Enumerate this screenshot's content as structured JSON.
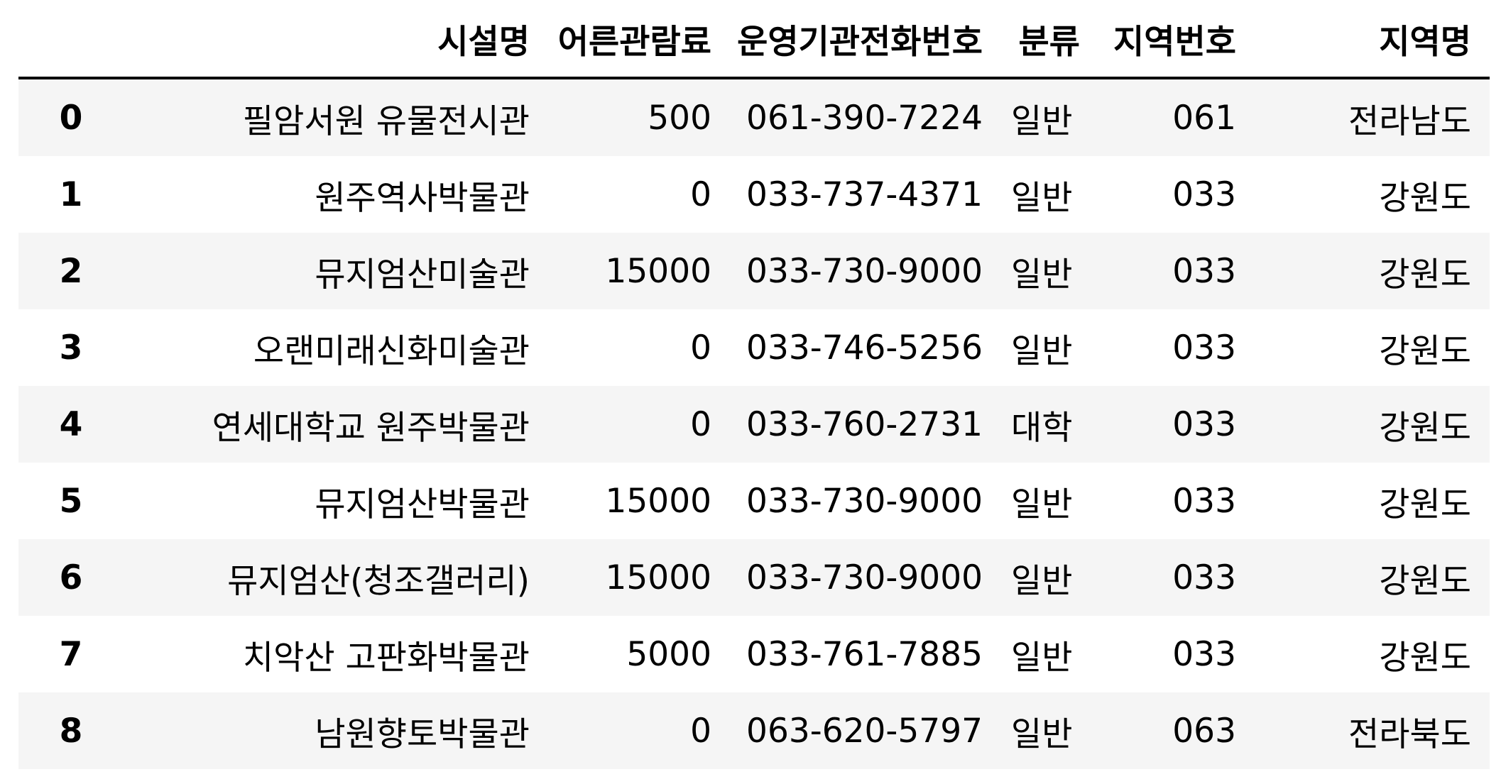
{
  "table": {
    "index_header": "",
    "columns": [
      "시설명",
      "어른관람료",
      "운영기관전화번호",
      "분류",
      "지역번호",
      "지역명"
    ],
    "rows": [
      {
        "index": "0",
        "cells": [
          "필암서원 유물전시관",
          "500",
          "061-390-7224",
          "일반",
          "061",
          "전라남도"
        ]
      },
      {
        "index": "1",
        "cells": [
          "원주역사박물관",
          "0",
          "033-737-4371",
          "일반",
          "033",
          "강원도"
        ]
      },
      {
        "index": "2",
        "cells": [
          "뮤지엄산미술관",
          "15000",
          "033-730-9000",
          "일반",
          "033",
          "강원도"
        ]
      },
      {
        "index": "3",
        "cells": [
          "오랜미래신화미술관",
          "0",
          "033-746-5256",
          "일반",
          "033",
          "강원도"
        ]
      },
      {
        "index": "4",
        "cells": [
          "연세대학교 원주박물관",
          "0",
          "033-760-2731",
          "대학",
          "033",
          "강원도"
        ]
      },
      {
        "index": "5",
        "cells": [
          "뮤지엄산박물관",
          "15000",
          "033-730-9000",
          "일반",
          "033",
          "강원도"
        ]
      },
      {
        "index": "6",
        "cells": [
          "뮤지엄산(청조갤러리)",
          "15000",
          "033-730-9000",
          "일반",
          "033",
          "강원도"
        ]
      },
      {
        "index": "7",
        "cells": [
          "치악산 고판화박물관",
          "5000",
          "033-761-7885",
          "일반",
          "033",
          "강원도"
        ]
      },
      {
        "index": "8",
        "cells": [
          "남원향토박물관",
          "0",
          "063-620-5797",
          "일반",
          "063",
          "전라북도"
        ]
      }
    ]
  }
}
